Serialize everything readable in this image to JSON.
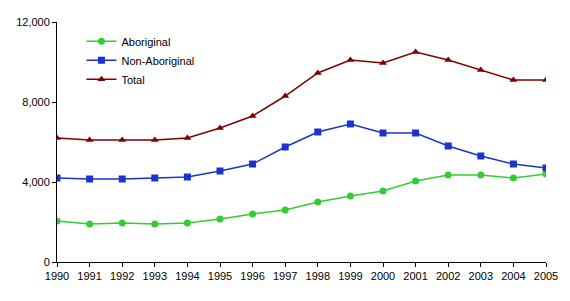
{
  "chart_data": {
    "type": "line",
    "x": [
      1990,
      1991,
      1992,
      1993,
      1994,
      1995,
      1996,
      1997,
      1998,
      1999,
      2000,
      2001,
      2002,
      2003,
      2004,
      2005
    ],
    "series": [
      {
        "name": "Aboriginal",
        "color": "#33cc33",
        "marker": "circle",
        "values": [
          2050,
          1900,
          1950,
          1900,
          1950,
          2150,
          2400,
          2600,
          3000,
          3300,
          3550,
          4050,
          4350,
          4350,
          4200,
          4400
        ]
      },
      {
        "name": "Non-Aboriginal",
        "color": "#1a33cc",
        "marker": "square",
        "values": [
          4200,
          4150,
          4150,
          4200,
          4250,
          4550,
          4900,
          5750,
          6500,
          6900,
          6450,
          6450,
          5800,
          5300,
          4900,
          4700
        ]
      },
      {
        "name": "Total",
        "color": "#800000",
        "marker": "triangle-up",
        "values": [
          6200,
          6100,
          6100,
          6100,
          6200,
          6700,
          7300,
          8300,
          9450,
          10100,
          9950,
          10500,
          10100,
          9600,
          9100,
          9100
        ]
      }
    ],
    "xlim": [
      1990,
      2005
    ],
    "xticks": [
      1990,
      1991,
      1992,
      1993,
      1994,
      1995,
      1996,
      1997,
      1998,
      1999,
      2000,
      2001,
      2002,
      2003,
      2004,
      2005
    ],
    "ylim": [
      0,
      12000
    ],
    "yticks": [
      0,
      {
        "value": 4000,
        "label": "4,000"
      },
      {
        "value": 8000,
        "label": "8,000"
      },
      {
        "value": 12000,
        "label": "12,000"
      }
    ],
    "grid": false,
    "legend": "upper left"
  }
}
